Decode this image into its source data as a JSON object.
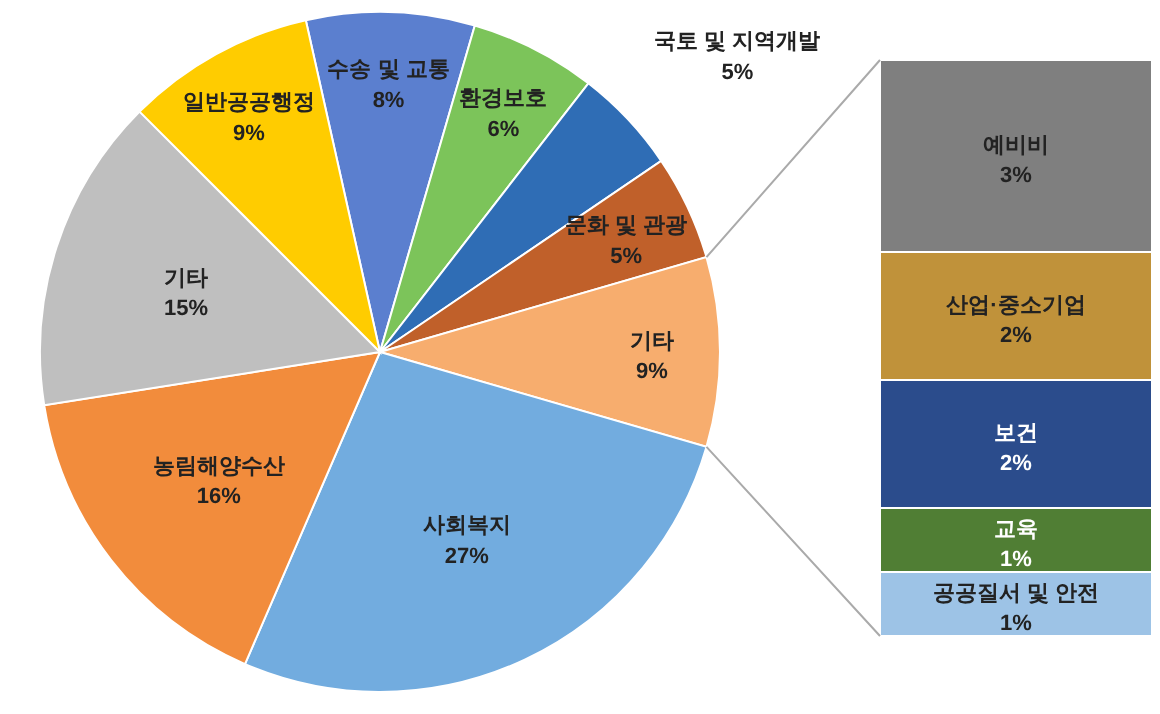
{
  "chart_data": [
    {
      "type": "pie",
      "categories": [
        "수송 및 교통",
        "환경보호",
        "국토 및 지역개발",
        "문화 및 관광",
        "기타",
        "사회복지",
        "농림해양수산",
        "기타",
        "일반공공행정"
      ],
      "values": [
        8,
        6,
        5,
        5,
        9,
        27,
        16,
        15,
        9
      ],
      "value_labels": [
        "8%",
        "6%",
        "5%",
        "5%",
        "9%",
        "27%",
        "16%",
        "15%",
        "9%"
      ],
      "colors": [
        "#5b7fcf",
        "#7cc45a",
        "#2f6db5",
        "#c0602a",
        "#f7ad6e",
        "#72acdf",
        "#f28c3c",
        "#bfbfbf",
        "#ffcc00"
      ]
    },
    {
      "type": "bar",
      "stacked": true,
      "categories": [
        null
      ],
      "series": [
        {
          "name": "공공질서 및 안전",
          "color": "#9dc3e6",
          "values": [
            1
          ],
          "value_labels": [
            "1%"
          ]
        },
        {
          "name": "교육",
          "color": "#507e34",
          "values": [
            1
          ],
          "value_labels": [
            "1%"
          ]
        },
        {
          "name": "보건",
          "color": "#2b4c8c",
          "values": [
            2
          ],
          "value_labels": [
            "2%"
          ]
        },
        {
          "name": "산업·중소기업",
          "color": "#c0923a",
          "values": [
            2
          ],
          "value_labels": [
            "2%"
          ]
        },
        {
          "name": "예비비",
          "color": "#7f7f7f",
          "values": [
            3
          ],
          "value_labels": [
            "3%"
          ]
        }
      ]
    }
  ]
}
